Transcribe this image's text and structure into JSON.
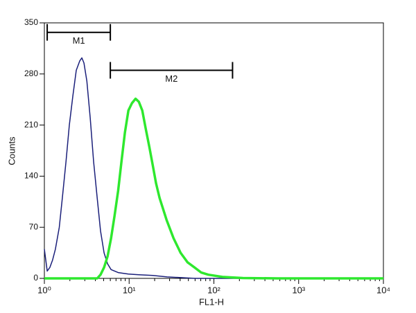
{
  "chart_data": {
    "type": "histogram-log",
    "xlabel": "FL1-H",
    "ylabel": "Counts",
    "xscale": "log",
    "xlim": [
      1,
      10000
    ],
    "xticks": [
      {
        "value": 1,
        "label": "10⁰"
      },
      {
        "value": 10,
        "label": "10¹"
      },
      {
        "value": 100,
        "label": "10²"
      },
      {
        "value": 1000,
        "label": "10³"
      },
      {
        "value": 10000,
        "label": "10⁴"
      }
    ],
    "ylim": [
      0,
      350
    ],
    "yticks": [
      0,
      70,
      140,
      210,
      280,
      350
    ],
    "series": [
      {
        "color": "#1a1f7a",
        "x": [
          1.0,
          1.08,
          1.16,
          1.25,
          1.35,
          1.5,
          1.63,
          1.8,
          1.97,
          2.17,
          2.38,
          2.62,
          2.77,
          2.93,
          3.17,
          3.47,
          3.81,
          4.2,
          4.6,
          5.06,
          5.56,
          6.12,
          7.42,
          9.8,
          13,
          19,
          28,
          41,
          60,
          10000
        ],
        "values": [
          40,
          10,
          15,
          25,
          40,
          70,
          110,
          160,
          210,
          250,
          285,
          298,
          302,
          295,
          270,
          220,
          160,
          110,
          65,
          35,
          20,
          12,
          8,
          6,
          5,
          4,
          2,
          1,
          0,
          0
        ]
      },
      {
        "color": "#2ee82e",
        "x": [
          1.0,
          4.2,
          4.6,
          5.06,
          5.56,
          6.12,
          6.71,
          7.42,
          8.12,
          8.93,
          9.8,
          10.8,
          11.9,
          13.0,
          14.3,
          15.7,
          17.3,
          19.0,
          20.8,
          22.9,
          27.7,
          33.4,
          40.5,
          48.9,
          59,
          71,
          86,
          126,
          220,
          567,
          10000
        ],
        "values": [
          0,
          0,
          5,
          15,
          30,
          55,
          85,
          120,
          160,
          200,
          230,
          240,
          246,
          242,
          230,
          205,
          180,
          155,
          130,
          110,
          80,
          55,
          35,
          22,
          15,
          8,
          5,
          2,
          0.5,
          0,
          0
        ]
      }
    ],
    "markers": [
      {
        "label": "M1",
        "range": [
          1.08,
          6.0
        ],
        "level": 337
      },
      {
        "label": "M2",
        "range": [
          6.0,
          166
        ],
        "level": 285
      }
    ]
  }
}
